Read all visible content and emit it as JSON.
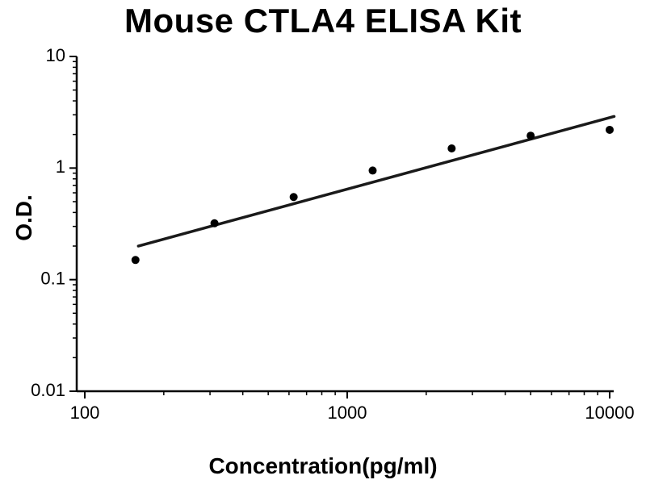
{
  "chart_data": {
    "type": "scatter",
    "title": "Mouse CTLA4 ELISA Kit",
    "xlabel": "Concentration(pg/ml)",
    "ylabel": "O.D.",
    "x_scale": "log",
    "y_scale": "log",
    "xlim": [
      100,
      10000
    ],
    "ylim": [
      0.01,
      10
    ],
    "grid": false,
    "legend": "none",
    "x_ticks": [
      {
        "value": 100,
        "label": "100"
      },
      {
        "value": 1000,
        "label": "1000"
      },
      {
        "value": 10000,
        "label": "10000"
      }
    ],
    "y_ticks": [
      {
        "value": 10,
        "label": "10"
      },
      {
        "value": 1,
        "label": "1"
      },
      {
        "value": 0.1,
        "label": "0.1"
      },
      {
        "value": 0.01,
        "label": "0.01"
      }
    ],
    "series": [
      {
        "name": "standard-curve-points",
        "kind": "scatter",
        "x": [
          156,
          312,
          625,
          1250,
          2500,
          5000,
          10000
        ],
        "y": [
          0.15,
          0.32,
          0.55,
          0.95,
          1.5,
          1.95,
          2.2
        ]
      },
      {
        "name": "fit-line",
        "kind": "line",
        "x": [
          160,
          10400
        ],
        "y": [
          0.2,
          2.9
        ]
      }
    ],
    "colors": {
      "points": "#000000",
      "line": "#1a1a1a",
      "axis": "#000000",
      "background": "#ffffff"
    }
  }
}
